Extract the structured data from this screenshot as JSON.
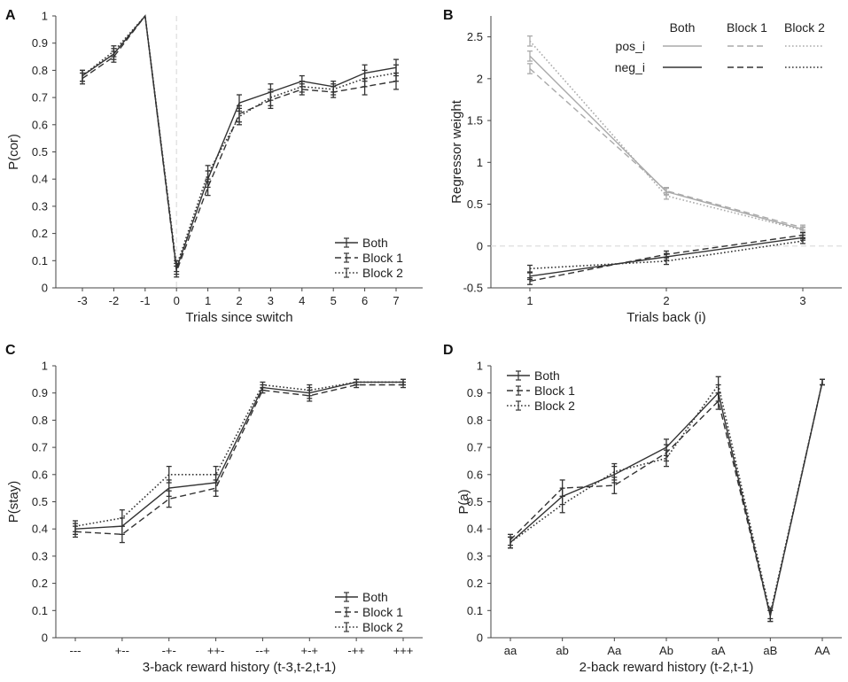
{
  "colors": {
    "dark": "#333333",
    "gray": "#aaaaaa",
    "zero": "#dddddd",
    "axis": "#444444"
  },
  "chart_data": [
    {
      "panel": "A",
      "type": "line",
      "xlabel": "Trials since switch",
      "ylabel": "P(cor)",
      "categories": [
        "-3",
        "-2",
        "-1",
        "0",
        "1",
        "2",
        "3",
        "4",
        "5",
        "6",
        "7"
      ],
      "ylim": [
        0,
        1
      ],
      "yticks": [
        0,
        0.1,
        0.2,
        0.3,
        0.4,
        0.5,
        0.6,
        0.7,
        0.8,
        0.9,
        1
      ],
      "ytick_labels": [
        "0",
        "0.1",
        "0.2",
        "0.3",
        "0.4",
        "0.5",
        "0.6",
        "0.7",
        "0.8",
        "0.9",
        "1"
      ],
      "vline_category": "0",
      "legend_position": "bottom-right",
      "series": [
        {
          "name": "Both",
          "style": "solid",
          "values": [
            0.78,
            0.86,
            1.0,
            0.07,
            0.4,
            0.68,
            0.72,
            0.76,
            0.74,
            0.79,
            0.81
          ],
          "err": [
            0.02,
            0.02,
            0.0,
            0.02,
            0.03,
            0.03,
            0.03,
            0.02,
            0.02,
            0.03,
            0.03
          ]
        },
        {
          "name": "Block 1",
          "style": "dashed",
          "values": [
            0.77,
            0.85,
            1.0,
            0.06,
            0.37,
            0.64,
            0.69,
            0.73,
            0.72,
            0.74,
            0.76
          ],
          "err": [
            0.02,
            0.02,
            0.0,
            0.02,
            0.03,
            0.03,
            0.03,
            0.02,
            0.02,
            0.03,
            0.03
          ]
        },
        {
          "name": "Block 2",
          "style": "dotted",
          "values": [
            0.78,
            0.87,
            1.0,
            0.08,
            0.42,
            0.63,
            0.7,
            0.74,
            0.73,
            0.77,
            0.79
          ],
          "err": [
            0.02,
            0.02,
            0.0,
            0.02,
            0.03,
            0.03,
            0.03,
            0.02,
            0.02,
            0.03,
            0.03
          ]
        }
      ]
    },
    {
      "panel": "B",
      "type": "line",
      "xlabel": "Trials back (i)",
      "ylabel": "Regressor weight",
      "categories": [
        "1",
        "2",
        "3"
      ],
      "ylim": [
        -0.5,
        2.75
      ],
      "yticks": [
        -0.5,
        0,
        0.5,
        1,
        1.5,
        2,
        2.5
      ],
      "ytick_labels": [
        "-0.5",
        "0",
        "0.5",
        "1",
        "1.5",
        "2",
        "2.5"
      ],
      "hline": 0,
      "legend_position": "top-right",
      "legend_columns": [
        "Both",
        "Block 1",
        "Block 2"
      ],
      "legend_rows": [
        "pos_i",
        "neg_i"
      ],
      "series": [
        {
          "name": "pos_i Both",
          "group": "pos_i",
          "color": "gray",
          "style": "solid",
          "values": [
            2.27,
            0.65,
            0.2
          ],
          "err": [
            0.06,
            0.04,
            0.03
          ]
        },
        {
          "name": "pos_i Block 1",
          "group": "pos_i",
          "color": "gray",
          "style": "dashed",
          "values": [
            2.12,
            0.66,
            0.22
          ],
          "err": [
            0.06,
            0.04,
            0.03
          ]
        },
        {
          "name": "pos_i Block 2",
          "group": "pos_i",
          "color": "gray",
          "style": "dotted",
          "values": [
            2.45,
            0.6,
            0.19
          ],
          "err": [
            0.06,
            0.04,
            0.03
          ]
        },
        {
          "name": "neg_i Both",
          "group": "neg_i",
          "color": "dark",
          "style": "solid",
          "values": [
            -0.36,
            -0.13,
            0.1
          ],
          "err": [
            0.04,
            0.04,
            0.03
          ]
        },
        {
          "name": "neg_i Block 1",
          "group": "neg_i",
          "color": "dark",
          "style": "dashed",
          "values": [
            -0.42,
            -0.1,
            0.13
          ],
          "err": [
            0.04,
            0.04,
            0.03
          ]
        },
        {
          "name": "neg_i Block 2",
          "group": "neg_i",
          "color": "dark",
          "style": "dotted",
          "values": [
            -0.27,
            -0.18,
            0.06
          ],
          "err": [
            0.04,
            0.04,
            0.03
          ]
        }
      ]
    },
    {
      "panel": "C",
      "type": "line",
      "xlabel": "3-back reward history (t-3,t-2,t-1)",
      "ylabel": "P(stay)",
      "categories": [
        "---",
        "+--",
        "-+-",
        "++-",
        "--+",
        "+-+",
        "-++",
        "+++"
      ],
      "ylim": [
        0,
        1
      ],
      "yticks": [
        0,
        0.1,
        0.2,
        0.3,
        0.4,
        0.5,
        0.6,
        0.7,
        0.8,
        0.9,
        1
      ],
      "ytick_labels": [
        "0",
        "0.1",
        "0.2",
        "0.3",
        "0.4",
        "0.5",
        "0.6",
        "0.7",
        "0.8",
        "0.9",
        "1"
      ],
      "legend_position": "bottom-right",
      "series": [
        {
          "name": "Both",
          "style": "solid",
          "values": [
            0.4,
            0.41,
            0.55,
            0.57,
            0.92,
            0.9,
            0.94,
            0.94
          ],
          "err": [
            0.02,
            0.03,
            0.03,
            0.03,
            0.01,
            0.02,
            0.01,
            0.01
          ]
        },
        {
          "name": "Block 1",
          "style": "dashed",
          "values": [
            0.39,
            0.38,
            0.51,
            0.55,
            0.91,
            0.89,
            0.93,
            0.93
          ],
          "err": [
            0.02,
            0.03,
            0.03,
            0.03,
            0.01,
            0.02,
            0.01,
            0.01
          ]
        },
        {
          "name": "Block 2",
          "style": "dotted",
          "values": [
            0.41,
            0.44,
            0.6,
            0.6,
            0.93,
            0.91,
            0.94,
            0.94
          ],
          "err": [
            0.02,
            0.03,
            0.03,
            0.03,
            0.01,
            0.02,
            0.01,
            0.01
          ]
        }
      ]
    },
    {
      "panel": "D",
      "type": "line",
      "xlabel": "2-back reward history (t-2,t-1)",
      "ylabel": "P(a)",
      "categories": [
        "aa",
        "ab",
        "Aa",
        "Ab",
        "aA",
        "aB",
        "AA"
      ],
      "ylim": [
        0,
        1
      ],
      "yticks": [
        0,
        0.1,
        0.2,
        0.3,
        0.4,
        0.5,
        0.6,
        0.7,
        0.8,
        0.9,
        1
      ],
      "ytick_labels": [
        "0",
        "0.1",
        "0.2",
        "0.3",
        "0.4",
        "0.5",
        "0.6",
        "0.7",
        "0.8",
        "0.9",
        "1"
      ],
      "legend_position": "top-left",
      "series": [
        {
          "name": "Both",
          "style": "solid",
          "values": [
            0.35,
            0.52,
            0.6,
            0.7,
            0.9,
            0.08,
            0.94
          ],
          "err": [
            0.02,
            0.03,
            0.03,
            0.03,
            0.03,
            0.02,
            0.01
          ]
        },
        {
          "name": "Block 1",
          "style": "dashed",
          "values": [
            0.36,
            0.55,
            0.56,
            0.68,
            0.87,
            0.08,
            0.94
          ],
          "err": [
            0.02,
            0.03,
            0.03,
            0.03,
            0.03,
            0.02,
            0.01
          ]
        },
        {
          "name": "Block 2",
          "style": "dotted",
          "values": [
            0.35,
            0.49,
            0.61,
            0.66,
            0.93,
            0.09,
            0.94
          ],
          "err": [
            0.02,
            0.03,
            0.03,
            0.03,
            0.03,
            0.02,
            0.01
          ]
        }
      ]
    }
  ]
}
